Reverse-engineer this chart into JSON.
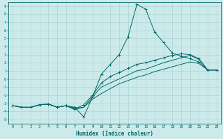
{
  "xlabel": "Humidex (Indice chaleur)",
  "bg_color": "#cceaea",
  "grid_color": "#aacece",
  "line_color": "#006868",
  "xlim": [
    -0.5,
    23.5
  ],
  "ylim": [
    -5.5,
    9.5
  ],
  "xticks": [
    0,
    1,
    2,
    3,
    4,
    5,
    6,
    7,
    8,
    9,
    10,
    11,
    12,
    13,
    14,
    15,
    16,
    17,
    18,
    19,
    20,
    21,
    22,
    23
  ],
  "yticks": [
    -5,
    -4,
    -3,
    -2,
    -1,
    0,
    1,
    2,
    3,
    4,
    5,
    6,
    7,
    8,
    9
  ],
  "line1_x": [
    0,
    1,
    2,
    3,
    4,
    5,
    6,
    7,
    8,
    9,
    10,
    11,
    12,
    13,
    14,
    15,
    16,
    17,
    18,
    19,
    20,
    21,
    22,
    23
  ],
  "line1_y": [
    -3.3,
    -3.5,
    -3.5,
    -3.2,
    -3.1,
    -3.5,
    -3.3,
    -3.5,
    -4.7,
    -2.2,
    0.6,
    1.8,
    3.0,
    5.2,
    9.2,
    8.6,
    5.8,
    4.5,
    3.2,
    2.8,
    2.5,
    2.1,
    1.1,
    1.1
  ],
  "line2_x": [
    0,
    1,
    2,
    3,
    4,
    5,
    6,
    7,
    8,
    9,
    10,
    11,
    12,
    13,
    14,
    15,
    16,
    17,
    18,
    19,
    20,
    21,
    22,
    23
  ],
  "line2_y": [
    -3.3,
    -3.5,
    -3.5,
    -3.2,
    -3.1,
    -3.5,
    -3.3,
    -3.8,
    -3.5,
    -2.2,
    -1.0,
    -0.5,
    0.0,
    0.5,
    1.0,
    1.2,
    1.6,
    2.0,
    2.3,
    2.6,
    2.9,
    2.4,
    1.1,
    1.1
  ],
  "line3_x": [
    0,
    1,
    2,
    3,
    4,
    5,
    6,
    7,
    8,
    9,
    10,
    11,
    12,
    13,
    14,
    15,
    16,
    17,
    18,
    19,
    20,
    21,
    22,
    23
  ],
  "line3_y": [
    -3.3,
    -3.5,
    -3.5,
    -3.2,
    -3.1,
    -3.5,
    -3.3,
    -3.6,
    -3.5,
    -2.5,
    -1.8,
    -1.2,
    -0.6,
    -0.2,
    0.2,
    0.5,
    0.9,
    1.2,
    1.5,
    1.8,
    2.1,
    1.9,
    1.1,
    1.1
  ],
  "line4_x": [
    0,
    1,
    2,
    3,
    4,
    5,
    6,
    7,
    8,
    9,
    10,
    11,
    12,
    13,
    14,
    15,
    16,
    17,
    18,
    19,
    20,
    21,
    22,
    23
  ],
  "line4_y": [
    -3.3,
    -3.5,
    -3.5,
    -3.2,
    -3.1,
    -3.5,
    -3.3,
    -3.7,
    -3.2,
    -2.0,
    -0.5,
    0.3,
    0.8,
    1.3,
    1.8,
    2.0,
    2.3,
    2.6,
    2.9,
    3.1,
    3.0,
    2.5,
    1.1,
    1.1
  ]
}
